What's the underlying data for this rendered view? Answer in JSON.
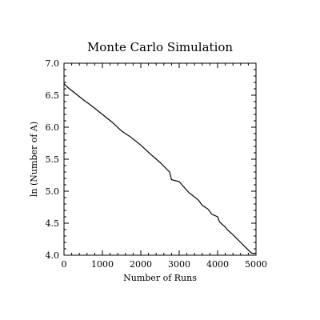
{
  "chart_data": {
    "type": "line",
    "title": "Monte Carlo Simulation",
    "xlabel": "Number of Runs",
    "ylabel": "ln (Number of A)",
    "xlim": [
      0,
      5000
    ],
    "ylim": [
      4.0,
      7.0
    ],
    "xticks": [
      0,
      1000,
      2000,
      3000,
      4000,
      5000
    ],
    "xtick_labels": [
      "0",
      "1000",
      "2000",
      "3000",
      "4000",
      "5000"
    ],
    "yticks": [
      4.0,
      4.5,
      5.0,
      5.5,
      6.0,
      6.5,
      7.0
    ],
    "ytick_labels": [
      "4.0",
      "4.5",
      "5.0",
      "5.5",
      "6.0",
      "6.5",
      "7.0"
    ],
    "grid": false,
    "line_color": "#000000",
    "series": [
      {
        "x": [
          0,
          100,
          250,
          500,
          750,
          1000,
          1250,
          1500,
          1750,
          2000,
          2250,
          2500,
          2750,
          2800,
          3000,
          3100,
          3250,
          3500,
          3600,
          3750,
          3850,
          4000,
          4050,
          4200,
          4250,
          4400,
          4500,
          4600,
          4700,
          4800,
          4850,
          4900,
          5000
        ],
        "y": [
          6.68,
          6.62,
          6.55,
          6.43,
          6.32,
          6.2,
          6.08,
          5.94,
          5.84,
          5.72,
          5.58,
          5.45,
          5.3,
          5.18,
          5.15,
          5.08,
          4.98,
          4.86,
          4.78,
          4.72,
          4.64,
          4.6,
          4.52,
          4.44,
          4.4,
          4.32,
          4.26,
          4.2,
          4.14,
          4.08,
          4.05,
          4.03,
          4.03
        ]
      }
    ]
  }
}
